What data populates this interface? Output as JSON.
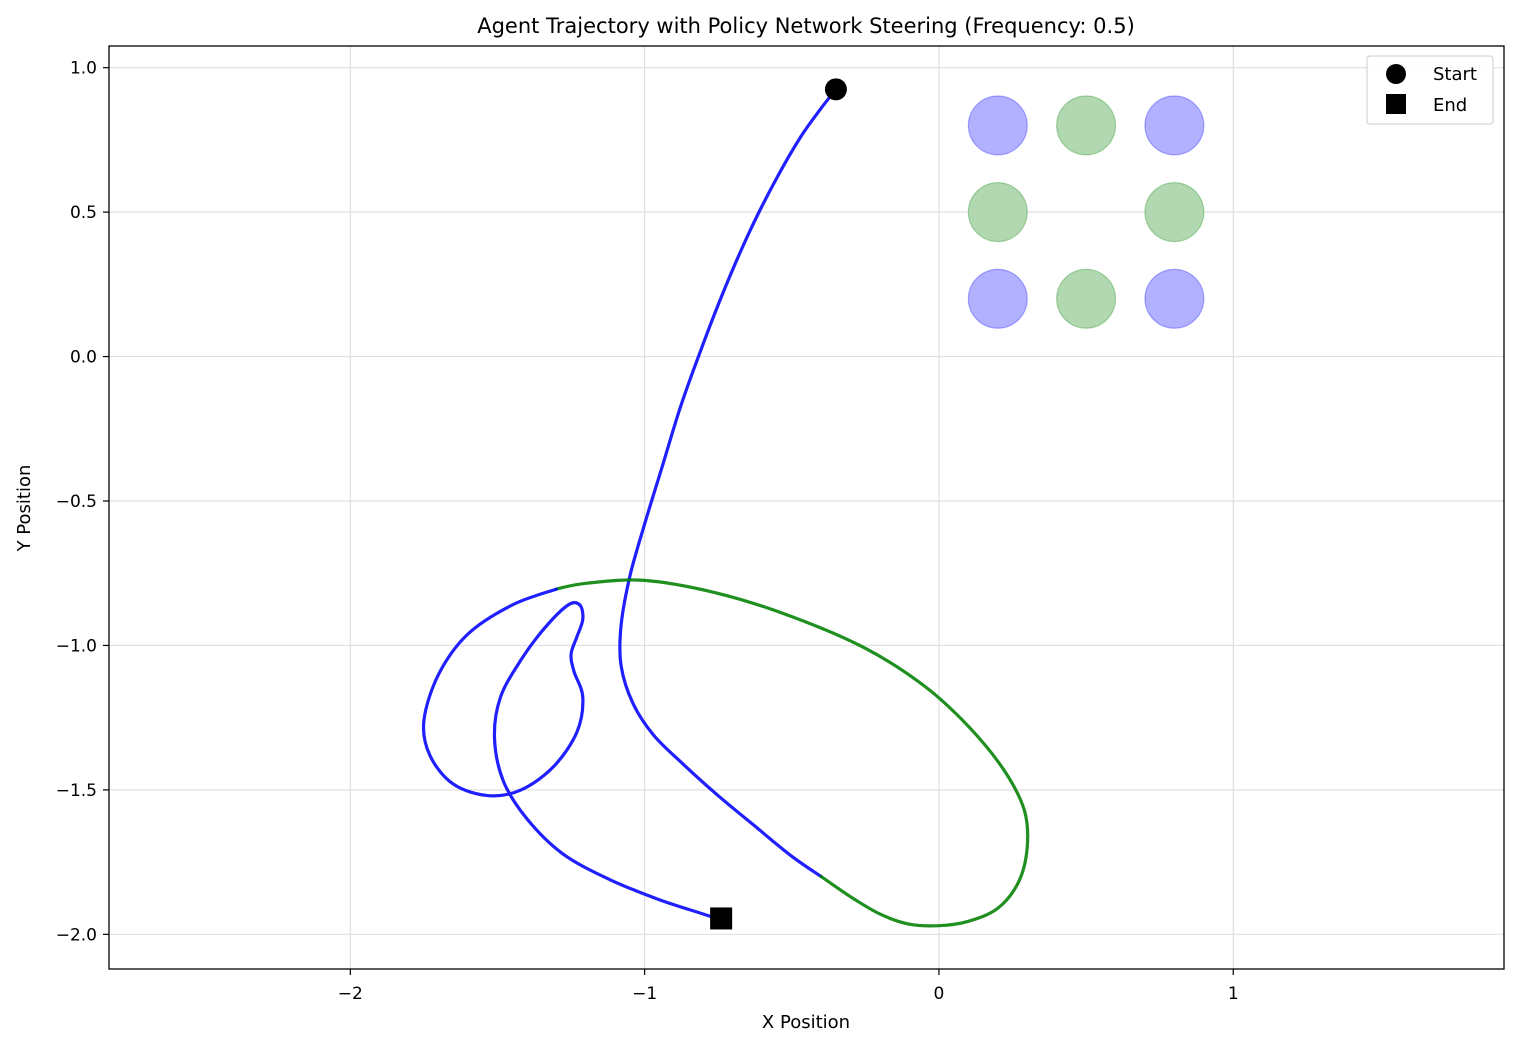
{
  "chart_data": {
    "type": "line",
    "title": "Agent Trajectory with Policy Network Steering (Frequency: 0.5)",
    "xlabel": "X Position",
    "ylabel": "Y Position",
    "xlim": [
      -2.82,
      1.92
    ],
    "ylim": [
      -2.12,
      1.075
    ],
    "grid": true,
    "legend_position": "top-right",
    "xticks": [
      {
        "value": -2,
        "label": "−2"
      },
      {
        "value": -1,
        "label": "−1"
      },
      {
        "value": 0,
        "label": "0"
      },
      {
        "value": 1,
        "label": "1"
      }
    ],
    "yticks": [
      {
        "value": 1.0,
        "label": "1.0"
      },
      {
        "value": 0.5,
        "label": "0.5"
      },
      {
        "value": 0.0,
        "label": "0.0"
      },
      {
        "value": -0.5,
        "label": "−0.5"
      },
      {
        "value": -1.0,
        "label": "−1.0"
      },
      {
        "value": -1.5,
        "label": "−1.5"
      },
      {
        "value": -2.0,
        "label": "−2.0"
      }
    ],
    "colors": {
      "blue": "#0000ff",
      "green": "#008000",
      "circle_blue": "#b1b1ff",
      "circle_green": "#b1d8b1"
    },
    "landmarks": [
      {
        "x": 0.2,
        "y": 0.8,
        "color": "blue"
      },
      {
        "x": 0.5,
        "y": 0.8,
        "color": "green"
      },
      {
        "x": 0.8,
        "y": 0.8,
        "color": "blue"
      },
      {
        "x": 0.2,
        "y": 0.5,
        "color": "green"
      },
      {
        "x": 0.8,
        "y": 0.5,
        "color": "green"
      },
      {
        "x": 0.2,
        "y": 0.2,
        "color": "blue"
      },
      {
        "x": 0.5,
        "y": 0.2,
        "color": "green"
      },
      {
        "x": 0.8,
        "y": 0.2,
        "color": "blue"
      }
    ],
    "series": [
      {
        "color": "blue",
        "points": [
          [
            -0.35,
            0.925
          ],
          [
            -0.4,
            0.86
          ],
          [
            -0.47,
            0.76
          ],
          [
            -0.55,
            0.62
          ],
          [
            -0.64,
            0.44
          ],
          [
            -0.73,
            0.23
          ],
          [
            -0.81,
            0.02
          ],
          [
            -0.88,
            -0.18
          ],
          [
            -0.94,
            -0.38
          ],
          [
            -1.0,
            -0.58
          ],
          [
            -1.05,
            -0.76
          ],
          [
            -1.08,
            -0.93
          ],
          [
            -1.08,
            -1.07
          ],
          [
            -1.04,
            -1.2
          ],
          [
            -0.97,
            -1.31
          ],
          [
            -0.87,
            -1.41
          ],
          [
            -0.75,
            -1.52
          ],
          [
            -0.62,
            -1.63
          ],
          [
            -0.5,
            -1.73
          ],
          [
            -0.4,
            -1.8
          ]
        ]
      },
      {
        "color": "green",
        "points": [
          [
            -0.4,
            -1.8
          ],
          [
            -0.3,
            -1.87
          ],
          [
            -0.2,
            -1.93
          ],
          [
            -0.1,
            -1.965
          ],
          [
            0.0,
            -1.97
          ],
          [
            0.1,
            -1.955
          ],
          [
            0.2,
            -1.91
          ],
          [
            0.27,
            -1.82
          ],
          [
            0.3,
            -1.7
          ],
          [
            0.29,
            -1.57
          ],
          [
            0.22,
            -1.43
          ],
          [
            0.1,
            -1.28
          ],
          [
            -0.05,
            -1.14
          ],
          [
            -0.25,
            -1.01
          ],
          [
            -0.5,
            -0.9
          ],
          [
            -0.75,
            -0.82
          ],
          [
            -1.0,
            -0.775
          ],
          [
            -1.2,
            -0.785
          ],
          [
            -1.3,
            -0.805
          ]
        ]
      },
      {
        "color": "blue",
        "points": [
          [
            -1.3,
            -0.805
          ],
          [
            -1.45,
            -0.86
          ],
          [
            -1.6,
            -0.96
          ],
          [
            -1.7,
            -1.1
          ],
          [
            -1.75,
            -1.26
          ],
          [
            -1.73,
            -1.38
          ],
          [
            -1.65,
            -1.48
          ],
          [
            -1.53,
            -1.52
          ],
          [
            -1.42,
            -1.5
          ],
          [
            -1.31,
            -1.42
          ],
          [
            -1.23,
            -1.3
          ],
          [
            -1.21,
            -1.18
          ],
          [
            -1.24,
            -1.09
          ],
          [
            -1.25,
            -1.03
          ],
          [
            -1.23,
            -0.97
          ],
          [
            -1.21,
            -0.91
          ],
          [
            -1.22,
            -0.86
          ],
          [
            -1.26,
            -0.86
          ],
          [
            -1.34,
            -0.94
          ],
          [
            -1.42,
            -1.05
          ],
          [
            -1.49,
            -1.18
          ],
          [
            -1.51,
            -1.32
          ],
          [
            -1.48,
            -1.47
          ],
          [
            -1.4,
            -1.6
          ],
          [
            -1.28,
            -1.72
          ],
          [
            -1.12,
            -1.81
          ],
          [
            -0.95,
            -1.88
          ],
          [
            -0.8,
            -1.93
          ],
          [
            -0.74,
            -1.95
          ]
        ]
      }
    ],
    "markers": {
      "start": {
        "x": -0.35,
        "y": 0.925,
        "label": "Start"
      },
      "end": {
        "x": -0.74,
        "y": -1.945,
        "label": "End"
      }
    }
  }
}
